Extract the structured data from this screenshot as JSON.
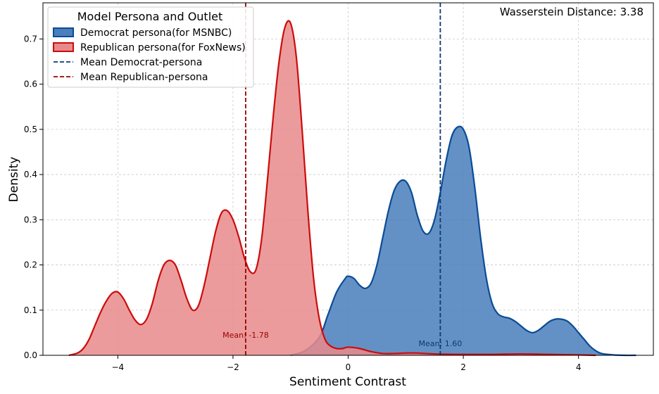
{
  "chart_data": {
    "type": "area",
    "title": "",
    "xlabel": "Sentiment Contrast",
    "ylabel": "Density",
    "xlim": [
      -5.3,
      5.3
    ],
    "ylim": [
      0.0,
      0.78
    ],
    "x_ticks": [
      -4,
      -2,
      0,
      2,
      4
    ],
    "x_tick_labels": [
      "−4",
      "−2",
      "0",
      "2",
      "4"
    ],
    "y_ticks": [
      0.0,
      0.1,
      0.2,
      0.3,
      0.4,
      0.5,
      0.6,
      0.7
    ],
    "y_tick_labels": [
      "0.0",
      "0.1",
      "0.2",
      "0.3",
      "0.4",
      "0.5",
      "0.6",
      "0.7"
    ],
    "grid": true,
    "legend": {
      "title": "Model Persona and Outlet",
      "placement": "top-left",
      "entries": [
        {
          "label": "Democrat persona(for MSNBC)",
          "kind": "patch",
          "fill": "#4a7fbc",
          "edge": "#0a4c95"
        },
        {
          "label": "Republican persona(for FoxNews)",
          "kind": "patch",
          "fill": "#e88a8c",
          "edge": "#cc0c0c"
        },
        {
          "label": "Mean Democrat-persona",
          "kind": "dashed",
          "color": "#0a3a75"
        },
        {
          "label": "Mean Republican-persona",
          "kind": "dashed",
          "color": "#990000"
        }
      ]
    },
    "annotation": "Wasserstein Distance: 3.38",
    "series": [
      {
        "name": "Democrat persona(for MSNBC)",
        "fill": "#4a7fbc",
        "stroke": "#0a4c95",
        "x": [
          -1.0,
          -0.75,
          -0.5,
          -0.35,
          -0.2,
          -0.05,
          0.0,
          0.1,
          0.2,
          0.3,
          0.4,
          0.5,
          0.6,
          0.7,
          0.8,
          0.9,
          1.0,
          1.1,
          1.2,
          1.3,
          1.4,
          1.5,
          1.6,
          1.7,
          1.8,
          1.9,
          2.0,
          2.1,
          2.2,
          2.3,
          2.4,
          2.5,
          2.6,
          2.7,
          2.8,
          2.9,
          3.0,
          3.1,
          3.2,
          3.3,
          3.4,
          3.5,
          3.6,
          3.7,
          3.8,
          3.9,
          4.0,
          4.1,
          4.2,
          4.3,
          4.4,
          4.6,
          4.8,
          5.0
        ],
        "y": [
          0.0,
          0.01,
          0.04,
          0.09,
          0.14,
          0.17,
          0.175,
          0.17,
          0.155,
          0.148,
          0.16,
          0.2,
          0.26,
          0.32,
          0.365,
          0.385,
          0.385,
          0.36,
          0.31,
          0.275,
          0.27,
          0.3,
          0.36,
          0.43,
          0.485,
          0.505,
          0.5,
          0.46,
          0.37,
          0.26,
          0.17,
          0.115,
          0.092,
          0.085,
          0.082,
          0.075,
          0.065,
          0.055,
          0.05,
          0.055,
          0.065,
          0.075,
          0.08,
          0.08,
          0.076,
          0.065,
          0.05,
          0.035,
          0.02,
          0.01,
          0.004,
          0.001,
          0.0,
          0.0
        ]
      },
      {
        "name": "Republican persona(for FoxNews)",
        "fill": "#e88a8c",
        "stroke": "#cc0c0c",
        "x": [
          -4.85,
          -4.7,
          -4.6,
          -4.5,
          -4.4,
          -4.3,
          -4.2,
          -4.1,
          -4.0,
          -3.9,
          -3.8,
          -3.7,
          -3.6,
          -3.5,
          -3.4,
          -3.3,
          -3.2,
          -3.1,
          -3.0,
          -2.9,
          -2.8,
          -2.7,
          -2.6,
          -2.5,
          -2.4,
          -2.3,
          -2.2,
          -2.1,
          -2.0,
          -1.9,
          -1.8,
          -1.7,
          -1.6,
          -1.5,
          -1.4,
          -1.3,
          -1.2,
          -1.1,
          -1.0,
          -0.9,
          -0.8,
          -0.7,
          -0.6,
          -0.5,
          -0.4,
          -0.3,
          -0.2,
          -0.1,
          0.0,
          0.2,
          0.4,
          0.6,
          0.8,
          1.0,
          1.2,
          1.5,
          2.0,
          2.5,
          3.0,
          3.5,
          4.0,
          4.3
        ],
        "y": [
          0.0,
          0.005,
          0.015,
          0.035,
          0.065,
          0.095,
          0.12,
          0.137,
          0.14,
          0.125,
          0.1,
          0.078,
          0.068,
          0.08,
          0.115,
          0.165,
          0.2,
          0.21,
          0.2,
          0.165,
          0.125,
          0.1,
          0.11,
          0.155,
          0.215,
          0.275,
          0.315,
          0.32,
          0.3,
          0.262,
          0.215,
          0.185,
          0.19,
          0.26,
          0.39,
          0.53,
          0.65,
          0.725,
          0.735,
          0.66,
          0.5,
          0.32,
          0.17,
          0.08,
          0.035,
          0.02,
          0.015,
          0.015,
          0.018,
          0.015,
          0.008,
          0.004,
          0.004,
          0.005,
          0.005,
          0.003,
          0.002,
          0.002,
          0.003,
          0.002,
          0.001,
          0.0
        ]
      }
    ],
    "means": [
      {
        "name": "Mean Democrat-persona",
        "x": 1.6,
        "label": "Mean: 1.60",
        "color": "#0a3a75"
      },
      {
        "name": "Mean Republican-persona",
        "x": -1.78,
        "label": "Mean: -1.78",
        "color": "#990000"
      }
    ]
  }
}
